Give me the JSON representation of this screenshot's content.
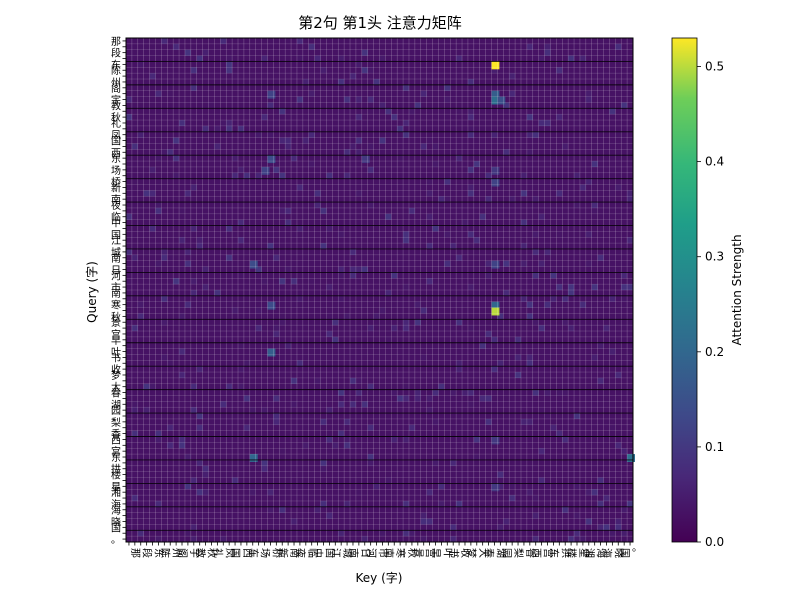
{
  "chart_data": {
    "type": "heatmap",
    "title": "第2句 第1头 注意力矩阵",
    "xlabel": "Key (字)",
    "ylabel": "Query (字)",
    "colorbar": {
      "label": "Attention Strength",
      "range": [
        0.0,
        0.53
      ],
      "ticks": [
        "0.0",
        "0.1",
        "0.2",
        "0.3",
        "0.4",
        "0.5"
      ],
      "colormap": "viridis"
    },
    "grid": true,
    "colors": {
      "low": "#440154",
      "mid": "#21918c",
      "high": "#fde725",
      "grid_line": "#ffffff",
      "block_line": "#000000"
    },
    "matrix": {
      "size": 86,
      "base_value": 0.03,
      "row_tokens_visible": [
        "那",
        "段",
        "东",
        "陈",
        "州",
        "阁",
        "宇",
        "教",
        "秋",
        "礼",
        "凤",
        "国",
        "西",
        "东",
        "场",
        "桥",
        "新",
        "南",
        "夜",
        "临",
        "中",
        "国",
        "江",
        "城",
        "南",
        "日",
        "河",
        "市",
        "南",
        "寒",
        "秋",
        "景",
        "宫",
        "早",
        "叶",
        "书",
        "收",
        "梦",
        "大",
        "春",
        "湖",
        "园",
        "梨",
        "香",
        "西",
        "宫",
        "东",
        "拱",
        "楼",
        "星",
        "湘",
        "海",
        "海",
        "晓",
        "国",
        "。"
      ],
      "col_tokens_visible": [
        "那",
        "段",
        "东",
        "陈",
        "州",
        "阁",
        "宇",
        "教",
        "秋",
        "礼",
        "凤",
        "国",
        "西",
        "东",
        "场",
        "桥",
        "新",
        "南",
        "夜",
        "临",
        "中",
        "国",
        "江",
        "城",
        "南",
        "日",
        "河",
        "市",
        "南",
        "寒",
        "秋",
        "景",
        "宫",
        "早",
        "叶",
        "书",
        "收",
        "梦",
        "大",
        "春",
        "湖",
        "园",
        "梨",
        "香",
        "西",
        "宫",
        "东",
        "拱",
        "楼",
        "星",
        "湘",
        "海",
        "海",
        "晓",
        "国",
        "。"
      ],
      "highlights": [
        {
          "query": 4,
          "key": 62,
          "value": 0.53
        },
        {
          "query": 9,
          "key": 62,
          "value": 0.18
        },
        {
          "query": 10,
          "key": 62,
          "value": 0.22
        },
        {
          "query": 10,
          "key": 63,
          "value": 0.15
        },
        {
          "query": 9,
          "key": 24,
          "value": 0.12
        },
        {
          "query": 20,
          "key": 24,
          "value": 0.14
        },
        {
          "query": 20,
          "key": 40,
          "value": 0.1
        },
        {
          "query": 22,
          "key": 23,
          "value": 0.12
        },
        {
          "query": 22,
          "key": 62,
          "value": 0.1
        },
        {
          "query": 24,
          "key": 62,
          "value": 0.12
        },
        {
          "query": 38,
          "key": 21,
          "value": 0.14
        },
        {
          "query": 38,
          "key": 62,
          "value": 0.12
        },
        {
          "query": 45,
          "key": 24,
          "value": 0.14
        },
        {
          "query": 45,
          "key": 62,
          "value": 0.2
        },
        {
          "query": 46,
          "key": 62,
          "value": 0.5
        },
        {
          "query": 53,
          "key": 24,
          "value": 0.18
        },
        {
          "query": 68,
          "key": 62,
          "value": 0.1
        },
        {
          "query": 71,
          "key": 21,
          "value": 0.2
        },
        {
          "query": 71,
          "key": 85,
          "value": 0.22
        },
        {
          "query": 76,
          "key": 62,
          "value": 0.1
        }
      ]
    }
  }
}
